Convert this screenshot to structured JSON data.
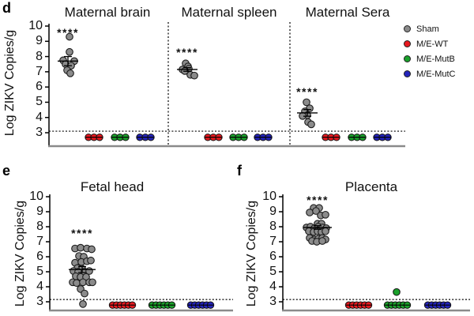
{
  "figure": {
    "panel_letters": {
      "d": "d",
      "e": "e",
      "f": "f"
    },
    "ylabel": "Log ZIKV Copies/g",
    "legend": [
      {
        "label": "Sham",
        "color": "#8b8b8b"
      },
      {
        "label": "M/E-WT",
        "color": "#e8191f"
      },
      {
        "label": "M/E-MutB",
        "color": "#1aa12b"
      },
      {
        "label": "M/E-MutC",
        "color": "#2424bb"
      }
    ]
  },
  "chart_data": [
    {
      "id": "d",
      "type": "scatter",
      "titles": [
        "Maternal brain",
        "Maternal spleen",
        "Maternal Sera"
      ],
      "ylabel": "Log ZIKV Copies/g",
      "ylim": [
        3,
        10
      ],
      "yticks": [
        3,
        4,
        5,
        6,
        7,
        8,
        9,
        10
      ],
      "detection_limit": 3.1,
      "groups": [
        {
          "title": "Maternal brain",
          "series": [
            {
              "name": "Sham",
              "color": "#8b8b8b",
              "significance": "****",
              "sig_y": 9.8,
              "mean": 7.7,
              "sem": 0.3,
              "points": [
                [
                  2,
                  9.3
                ],
                [
                  2,
                  8.3
                ],
                [
                  -6,
                  7.75
                ],
                [
                  8,
                  7.7
                ],
                [
                  -3,
                  7.5
                ],
                [
                  4,
                  7.4
                ],
                [
                  -1,
                  7.1
                ],
                [
                  3,
                  6.9
                ]
              ]
            },
            {
              "name": "M/E-WT",
              "color": "#e8191f",
              "at_limit": true,
              "y": 2.7
            },
            {
              "name": "M/E-MutB",
              "color": "#1aa12b",
              "at_limit": true,
              "y": 2.7
            },
            {
              "name": "M/E-MutC",
              "color": "#2424bb",
              "at_limit": true,
              "y": 2.7
            }
          ]
        },
        {
          "title": "Maternal spleen",
          "series": [
            {
              "name": "Sham",
              "color": "#8b8b8b",
              "significance": "****",
              "sig_y": 8.5,
              "mean": 7.15,
              "sem": 0.12,
              "points": [
                [
                  -2,
                  7.55
                ],
                [
                  1,
                  7.35
                ],
                [
                  -6,
                  7.15
                ],
                [
                  2,
                  7.2
                ],
                [
                  -3,
                  7.05
                ],
                [
                  4,
                  6.8
                ],
                [
                  9,
                  6.75
                ]
              ]
            },
            {
              "name": "M/E-WT",
              "color": "#e8191f",
              "at_limit": true,
              "y": 2.7
            },
            {
              "name": "M/E-MutB",
              "color": "#1aa12b",
              "at_limit": true,
              "y": 2.7
            },
            {
              "name": "M/E-MutC",
              "color": "#2424bb",
              "at_limit": true,
              "y": 2.7
            }
          ]
        },
        {
          "title": "Maternal Sera",
          "series": [
            {
              "name": "Sham",
              "color": "#8b8b8b",
              "significance": "****",
              "sig_y": 5.9,
              "mean": 4.3,
              "sem": 0.22,
              "points": [
                [
                  -1,
                  5.0
                ],
                [
                  3,
                  4.6
                ],
                [
                  -3,
                  4.4
                ],
                [
                  0,
                  4.15
                ],
                [
                  -6,
                  4.1
                ],
                [
                  1,
                  3.7
                ],
                [
                  5,
                  3.55
                ]
              ]
            },
            {
              "name": "M/E-WT",
              "color": "#e8191f",
              "at_limit": true,
              "y": 2.7
            },
            {
              "name": "M/E-MutB",
              "color": "#1aa12b",
              "at_limit": true,
              "y": 2.7
            },
            {
              "name": "M/E-MutC",
              "color": "#2424bb",
              "at_limit": true,
              "y": 2.7
            }
          ]
        }
      ]
    },
    {
      "id": "e",
      "type": "scatter",
      "title": "Fetal head",
      "ylabel": "Log ZIKV Copies/g",
      "ylim": [
        3,
        10
      ],
      "yticks": [
        3,
        4,
        5,
        6,
        7,
        8,
        9,
        10
      ],
      "detection_limit": 3.15,
      "groups": [
        {
          "title": "Fetal head",
          "series": [
            {
              "name": "Sham",
              "color": "#8b8b8b",
              "significance": "****",
              "sig_y": 7.8,
              "mean": 5.15,
              "sem": 0.2,
              "points": [
                [
                  -9,
                  6.55
                ],
                [
                  -2,
                  6.6
                ],
                [
                  6,
                  6.55
                ],
                [
                  12,
                  6.5
                ],
                [
                  -4,
                  6.05
                ],
                [
                  2,
                  6.0
                ],
                [
                  -9,
                  5.6
                ],
                [
                  -1,
                  5.65
                ],
                [
                  6,
                  5.7
                ],
                [
                  11,
                  5.75
                ],
                [
                  -6,
                  5.25
                ],
                [
                  0,
                  5.2
                ],
                [
                  -11,
                  5.05
                ],
                [
                  -5,
                  5.0
                ],
                [
                  3,
                  5.0
                ],
                [
                  9,
                  5.05
                ],
                [
                  -8,
                  4.7
                ],
                [
                  -2,
                  4.65
                ],
                [
                  5,
                  4.65
                ],
                [
                  -12,
                  4.3
                ],
                [
                  -7,
                  4.25
                ],
                [
                  1,
                  4.3
                ],
                [
                  9,
                  4.3
                ],
                [
                  13,
                  4.3
                ],
                [
                  -2,
                  3.85
                ],
                [
                  3,
                  3.55
                ],
                [
                  1,
                  2.85
                ]
              ]
            },
            {
              "name": "M/E-WT",
              "color": "#e8191f",
              "at_limit": true,
              "y": 2.78
            },
            {
              "name": "M/E-MutB",
              "color": "#1aa12b",
              "at_limit": true,
              "y": 2.78
            },
            {
              "name": "M/E-MutC",
              "color": "#2424bb",
              "at_limit": true,
              "y": 2.78
            }
          ]
        }
      ]
    },
    {
      "id": "f",
      "type": "scatter",
      "title": "Placenta",
      "ylabel": "Log ZIKV Copies/g",
      "ylim": [
        3,
        10
      ],
      "yticks": [
        3,
        4,
        5,
        6,
        7,
        8,
        9,
        10
      ],
      "detection_limit": 3.15,
      "groups": [
        {
          "title": "Placenta",
          "series": [
            {
              "name": "Sham",
              "color": "#8b8b8b",
              "significance": "****",
              "sig_y": 10.0,
              "mean": 7.95,
              "sem": 0.12,
              "points": [
                [
                  -5,
                  9.25
                ],
                [
                  2,
                  9.25
                ],
                [
                  -10,
                  8.95
                ],
                [
                  -2,
                  9.05
                ],
                [
                  4,
                  8.75
                ],
                [
                  10,
                  8.8
                ],
                [
                  0,
                  8.2
                ],
                [
                  5,
                  8.2
                ],
                [
                  -14,
                  7.95
                ],
                [
                  -9,
                  8.0
                ],
                [
                  -4,
                  7.9
                ],
                [
                  1,
                  8.0
                ],
                [
                  6,
                  7.95
                ],
                [
                  11,
                  7.9
                ],
                [
                  -11,
                  7.7
                ],
                [
                  -5,
                  7.65
                ],
                [
                  0,
                  7.7
                ],
                [
                  5,
                  7.65
                ],
                [
                  10,
                  7.7
                ],
                [
                  -10,
                  7.25
                ],
                [
                  -4,
                  7.15
                ],
                [
                  1,
                  7.2
                ],
                [
                  6,
                  7.25
                ],
                [
                  10,
                  7.15
                ],
                [
                  -7,
                  7.05
                ],
                [
                  -1,
                  7.0
                ],
                [
                  6,
                  7.05
                ]
              ]
            },
            {
              "name": "M/E-WT",
              "color": "#e8191f",
              "at_limit": true,
              "y": 2.78
            },
            {
              "name": "M/E-MutB",
              "color": "#1aa12b",
              "at_limit": true,
              "y": 2.78,
              "outliers": [
                [
                  -1,
                  3.65
                ]
              ]
            },
            {
              "name": "M/E-MutC",
              "color": "#2424bb",
              "at_limit": true,
              "y": 2.78
            }
          ]
        }
      ]
    }
  ]
}
